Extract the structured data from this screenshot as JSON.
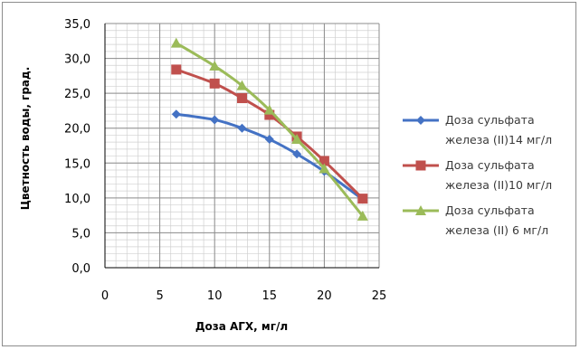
{
  "chart_data": {
    "type": "line",
    "title": "",
    "xlabel": "Доза АГХ, мг/л",
    "ylabel": "Цветность воды,  град.",
    "xlim": [
      0,
      25
    ],
    "ylim": [
      0,
      35
    ],
    "x_ticks": [
      "0",
      "5",
      "10",
      "15",
      "20",
      "25"
    ],
    "y_ticks": [
      "0,0",
      "5,0",
      "10,0",
      "15,0",
      "20,0",
      "25,0",
      "30,0",
      "35,0"
    ],
    "grid": true,
    "minor_grid": true,
    "legend_position": "right",
    "series": [
      {
        "name": "Доза сульфата железа (II)14  мг/л",
        "legend_lines": [
          "Доза сульфата",
          "железа (II)14  мг/л"
        ],
        "color": "#4472c4",
        "marker": "diamond",
        "x": [
          6.5,
          10,
          12.5,
          15,
          17.5,
          20,
          23.5
        ],
        "y": [
          22.0,
          21.2,
          20.0,
          18.4,
          16.3,
          13.8,
          9.8
        ]
      },
      {
        "name": "Доза сульфата железа (II)10  мг/л",
        "legend_lines": [
          "Доза сульфата",
          "железа (II)10  мг/л"
        ],
        "color": "#c0504d",
        "marker": "square",
        "x": [
          6.5,
          10,
          12.5,
          15,
          17.5,
          20,
          23.5
        ],
        "y": [
          28.4,
          26.4,
          24.3,
          21.9,
          18.8,
          15.3,
          9.9
        ]
      },
      {
        "name": "Доза сульфата железа (II) 6  мг/л",
        "legend_lines": [
          "Доза сульфата",
          "железа (II) 6  мг/л"
        ],
        "color": "#9bbb59",
        "marker": "triangle",
        "x": [
          6.5,
          10,
          12.5,
          15,
          17.5,
          20,
          23.5
        ],
        "y": [
          32.2,
          28.9,
          26.1,
          22.6,
          18.4,
          14.2,
          7.4
        ]
      }
    ]
  }
}
